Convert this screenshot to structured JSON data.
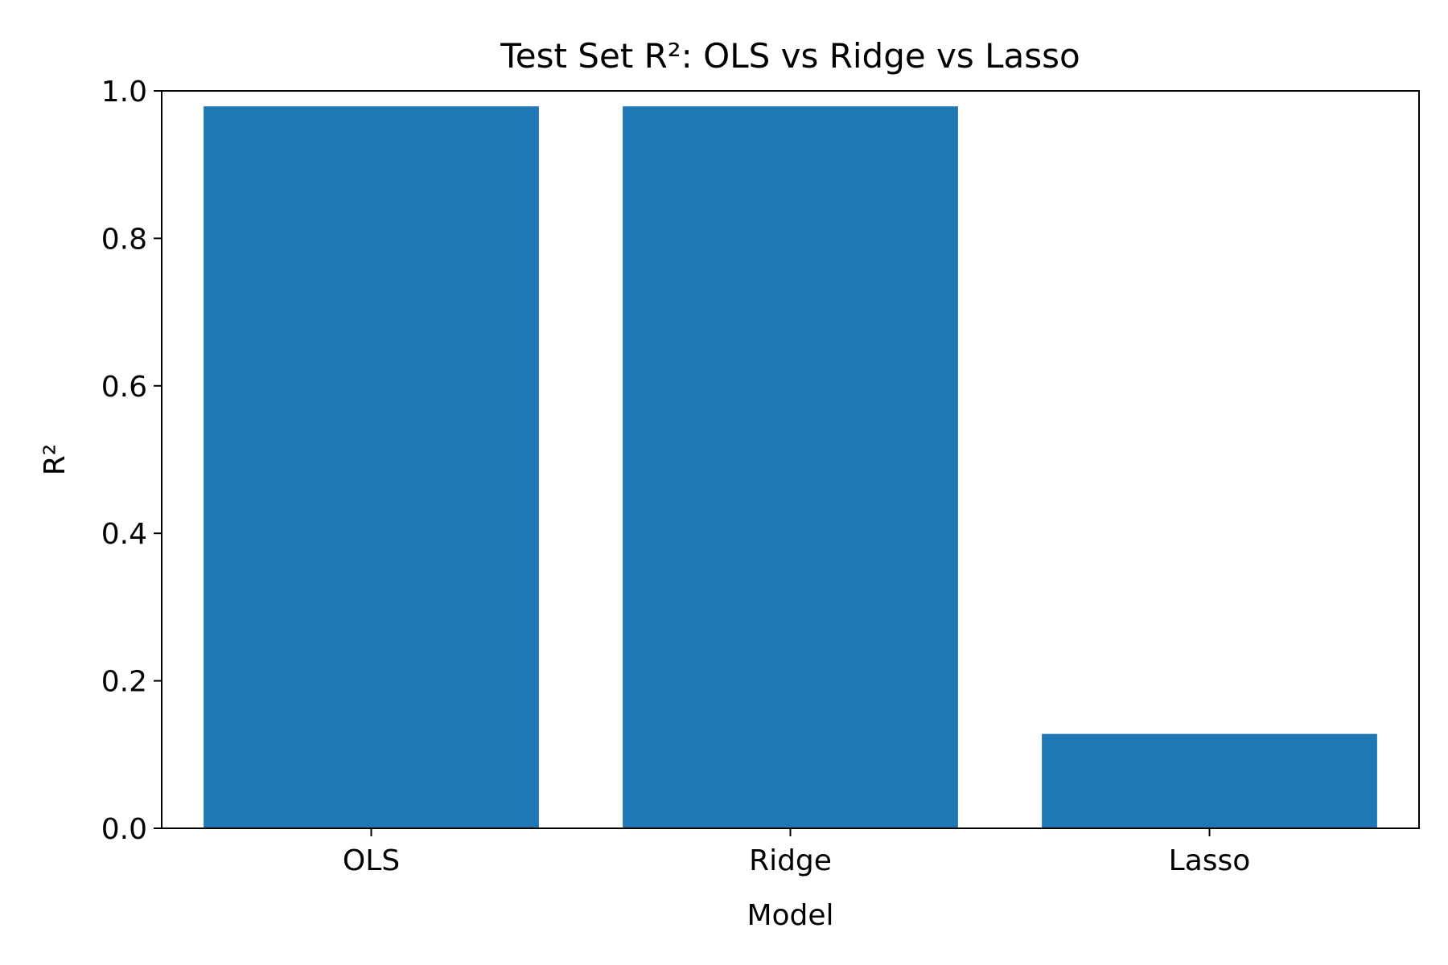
{
  "chart_data": {
    "type": "bar",
    "title": "Test Set R²: OLS vs Ridge vs Lasso",
    "xlabel": "Model",
    "ylabel": "R²",
    "categories": [
      "OLS",
      "Ridge",
      "Lasso"
    ],
    "values": [
      0.979,
      0.979,
      0.128
    ],
    "ylim": [
      0.0,
      1.0
    ],
    "yticks": [
      "0.0",
      "0.2",
      "0.4",
      "0.6",
      "0.8",
      "1.0"
    ],
    "grid": false,
    "legend": "none",
    "colors": {
      "bar": "#1f77b4",
      "axis": "#000000",
      "background": "#ffffff"
    }
  }
}
